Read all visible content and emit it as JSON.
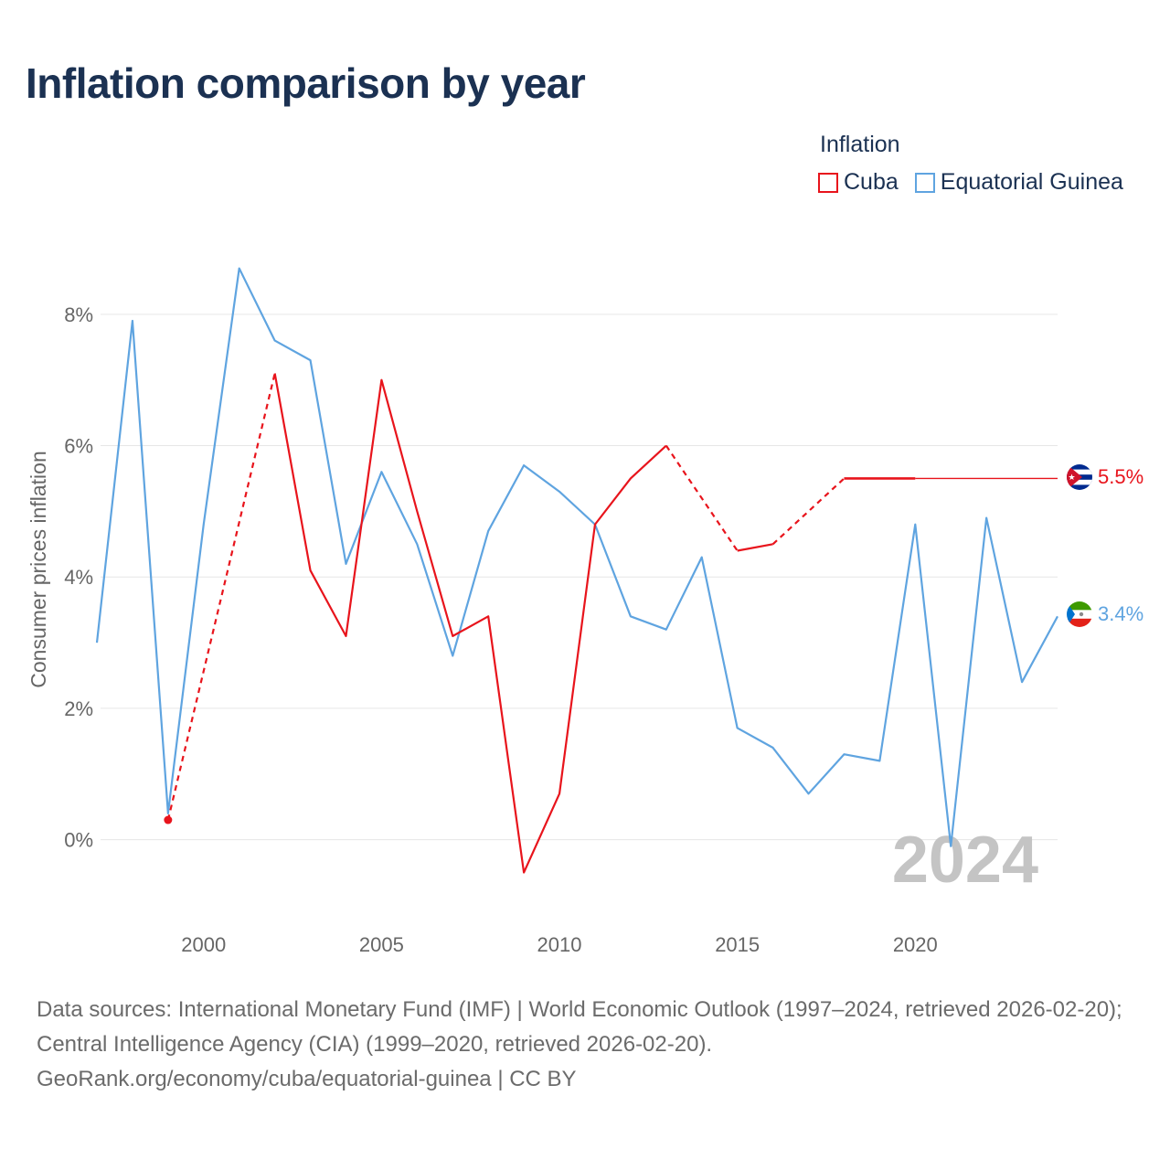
{
  "title": "Inflation comparison by year",
  "legend": {
    "title": "Inflation",
    "items": [
      {
        "label": "Cuba",
        "color": "#e8141c"
      },
      {
        "label": "Equatorial Guinea",
        "color": "#5fa4e0"
      }
    ]
  },
  "chart_data": {
    "type": "line",
    "title": "Inflation comparison by year",
    "ylabel": "Consumer prices inflation",
    "xlabel": "",
    "xlim": [
      1997,
      2024
    ],
    "ylim": [
      -1.3,
      9.0
    ],
    "xticks": [
      2000,
      2005,
      2010,
      2015,
      2020
    ],
    "yticks": [
      0,
      2,
      4,
      6,
      8
    ],
    "ytick_labels": [
      "0%",
      "2%",
      "4%",
      "6%",
      "8%"
    ],
    "grid": true,
    "watermark_year": "2024",
    "series": [
      {
        "name": "Cuba",
        "color": "#e8141c",
        "points": [
          [
            1999,
            0.3
          ],
          [
            2002,
            7.1
          ],
          [
            2003,
            4.1
          ],
          [
            2004,
            3.1
          ],
          [
            2005,
            7.0
          ],
          [
            2006,
            5.0
          ],
          [
            2007,
            3.1
          ],
          [
            2008,
            3.4
          ],
          [
            2009,
            -0.5
          ],
          [
            2010,
            0.7
          ],
          [
            2011,
            4.8
          ],
          [
            2012,
            5.5
          ],
          [
            2013,
            6.0
          ],
          [
            2015,
            4.4
          ],
          [
            2016,
            4.5
          ],
          [
            2018,
            5.5
          ],
          [
            2019,
            5.5
          ],
          [
            2020,
            5.5
          ],
          [
            2024,
            5.5
          ]
        ],
        "segments": [
          {
            "from": 1999,
            "to": 2002,
            "style": "dashed"
          },
          {
            "from": 2002,
            "to": 2013,
            "style": "solid"
          },
          {
            "from": 2013,
            "to": 2015,
            "style": "dashed"
          },
          {
            "from": 2015,
            "to": 2016,
            "style": "solid"
          },
          {
            "from": 2016,
            "to": 2018,
            "style": "dashed"
          },
          {
            "from": 2018,
            "to": 2020,
            "style": "solid-bold"
          },
          {
            "from": 2020,
            "to": 2024,
            "style": "solid-thin"
          }
        ],
        "end_label": "5.5%"
      },
      {
        "name": "Equatorial Guinea",
        "color": "#5fa4e0",
        "points": [
          [
            1997,
            3.0
          ],
          [
            1998,
            7.9
          ],
          [
            1999,
            0.4
          ],
          [
            2000,
            4.8
          ],
          [
            2001,
            8.7
          ],
          [
            2002,
            7.6
          ],
          [
            2003,
            7.3
          ],
          [
            2004,
            4.2
          ],
          [
            2005,
            5.6
          ],
          [
            2006,
            4.5
          ],
          [
            2007,
            2.8
          ],
          [
            2008,
            4.7
          ],
          [
            2009,
            5.7
          ],
          [
            2010,
            5.3
          ],
          [
            2011,
            4.8
          ],
          [
            2012,
            3.4
          ],
          [
            2013,
            3.2
          ],
          [
            2014,
            4.3
          ],
          [
            2015,
            1.7
          ],
          [
            2016,
            1.4
          ],
          [
            2017,
            0.7
          ],
          [
            2018,
            1.3
          ],
          [
            2019,
            1.2
          ],
          [
            2020,
            4.8
          ],
          [
            2021,
            -0.1
          ],
          [
            2022,
            4.9
          ],
          [
            2023,
            2.4
          ],
          [
            2024,
            3.4
          ]
        ],
        "end_label": "3.4%"
      }
    ]
  },
  "source": {
    "line1": "Data sources: International Monetary Fund (IMF) | World Economic Outlook (1997–2024, retrieved 2026-02-20); Central Intelligence Agency (CIA) (1999–2020, retrieved 2026-02-20).",
    "line2": "GeoRank.org/economy/cuba/equatorial-guinea | CC BY"
  }
}
